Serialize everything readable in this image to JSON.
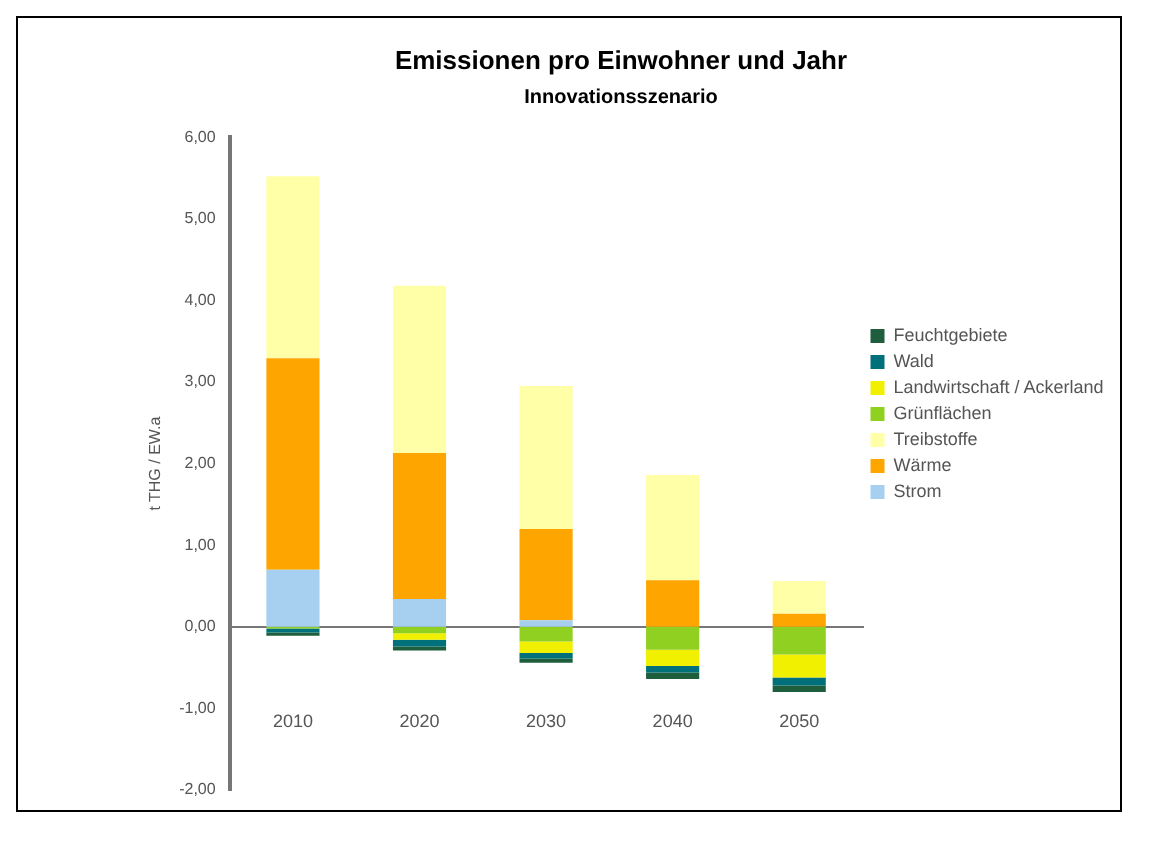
{
  "chart_data": {
    "type": "bar",
    "title": "Emissionen pro Einwohner und Jahr",
    "subtitle": "Innovationsszenario",
    "ylabel": "t THG / EW.a",
    "categories": [
      "2010",
      "2020",
      "2030",
      "2040",
      "2050"
    ],
    "stacked": true,
    "legend": "right",
    "ylim": [
      -2,
      6
    ],
    "yticks": [
      {
        "value": -2,
        "label": "-2,00"
      },
      {
        "value": -1,
        "label": "-1,00"
      },
      {
        "value": 0,
        "label": "0,00"
      },
      {
        "value": 1,
        "label": "1,00"
      },
      {
        "value": 2,
        "label": "2,00"
      },
      {
        "value": 3,
        "label": "3,00"
      },
      {
        "value": 4,
        "label": "4,00"
      },
      {
        "value": 5,
        "label": "5,00"
      },
      {
        "value": 6,
        "label": "6,00"
      }
    ],
    "series": [
      {
        "name": "Strom",
        "color": "#a6cff0",
        "values": [
          0.7,
          0.34,
          0.08,
          0,
          0
        ]
      },
      {
        "name": "Wärme",
        "color": "#ffa500",
        "values": [
          2.59,
          1.79,
          1.12,
          0.57,
          0.16
        ]
      },
      {
        "name": "Treibstoffe",
        "color": "#ffffa8",
        "values": [
          2.23,
          2.05,
          1.75,
          1.29,
          0.4
        ]
      },
      {
        "name": "Grünflächen",
        "color": "#90d020",
        "values": [
          -0.02,
          -0.08,
          -0.18,
          -0.28,
          -0.34
        ]
      },
      {
        "name": "Landwirtschaft / Ackerland",
        "color": "#f0f000",
        "values": [
          0,
          -0.08,
          -0.14,
          -0.2,
          -0.28
        ]
      },
      {
        "name": "Wald",
        "color": "#00707a",
        "values": [
          -0.05,
          -0.08,
          -0.07,
          -0.08,
          -0.1
        ]
      },
      {
        "name": "Feuchtgebiete",
        "color": "#1e5e3c",
        "values": [
          -0.04,
          -0.05,
          -0.05,
          -0.08,
          -0.08
        ]
      }
    ]
  }
}
